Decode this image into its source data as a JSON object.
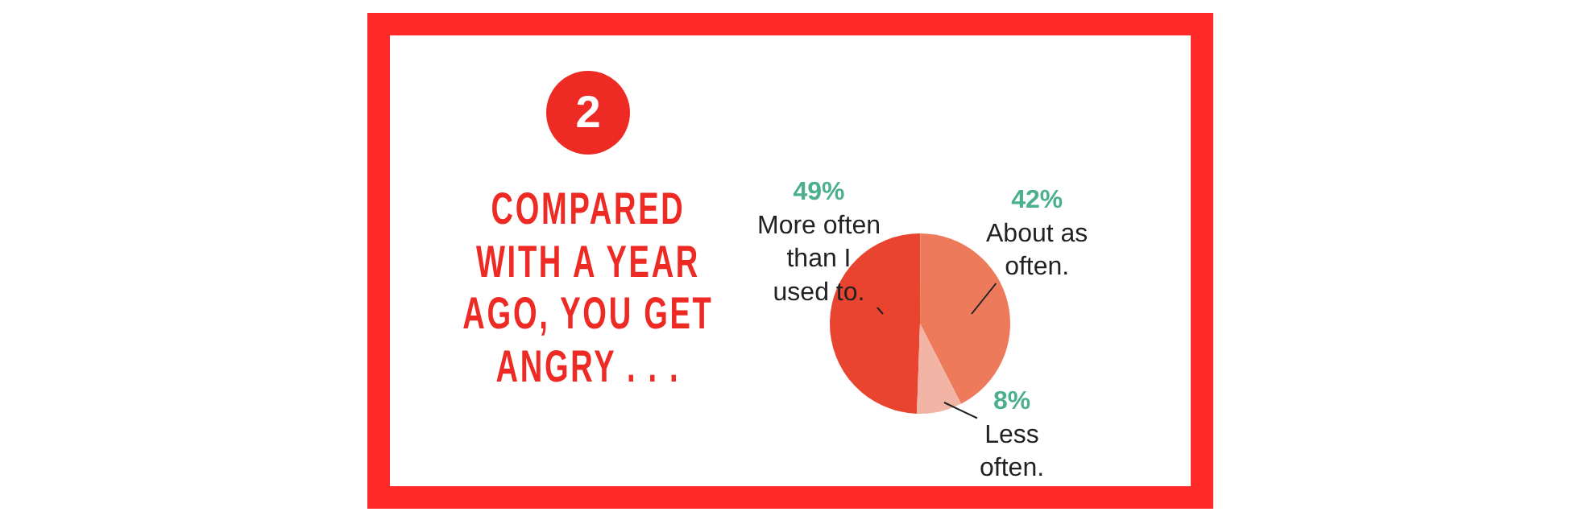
{
  "chart_data": {
    "type": "pie",
    "title": "COMPARED WITH A YEAR AGO, YOU GET ANGRY . . .",
    "annotations": [
      "2"
    ],
    "categories": [
      "More often than I used to.",
      "About as often.",
      "Less often."
    ],
    "values": [
      49,
      42,
      8
    ],
    "value_labels": [
      "49%",
      "42%",
      "8%"
    ],
    "colors": [
      "#e8442f",
      "#ee7a5c",
      "#f2b4a4"
    ],
    "legend": false
  }
}
